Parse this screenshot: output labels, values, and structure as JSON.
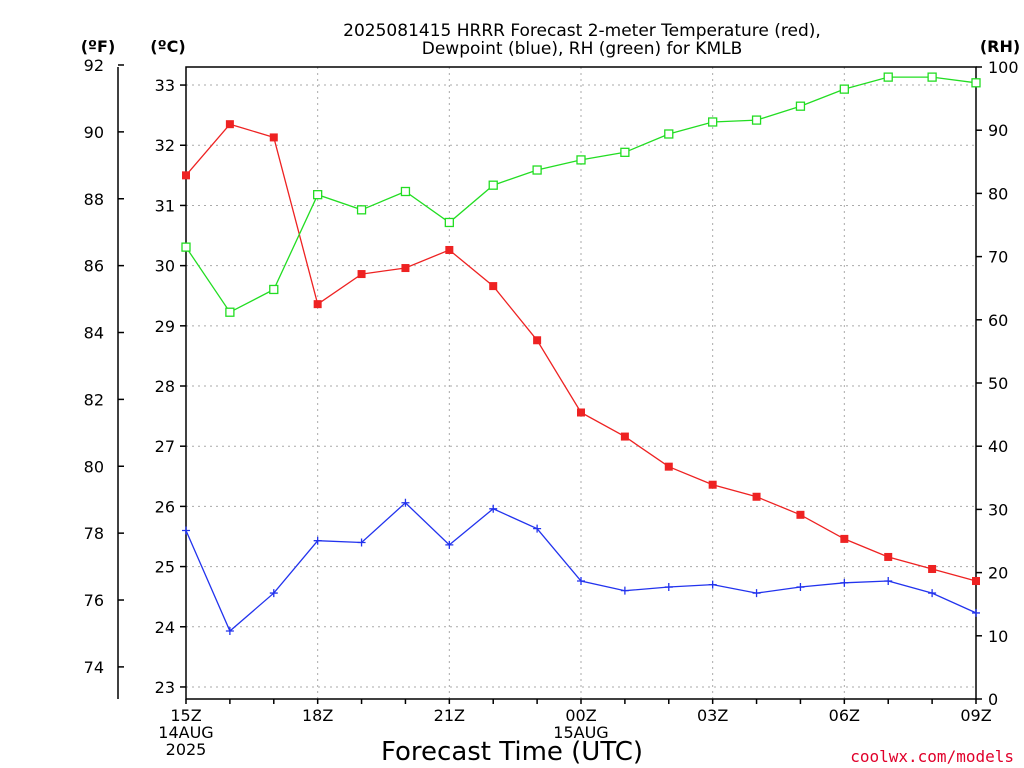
{
  "chart_data": {
    "type": "line",
    "title_line1": "2025081415 HRRR Forecast 2-meter Temperature (red),",
    "title_line2": "Dewpoint (blue), RH (green) for KMLB",
    "xlabel": "Forecast Time (UTC)",
    "credit": "coolwx.com/models",
    "units": {
      "f": "(ºF)",
      "c": "(ºC)",
      "rh": "(RH)"
    },
    "x_hours": [
      0,
      1,
      2,
      3,
      4,
      5,
      6,
      7,
      8,
      9,
      10,
      11,
      12,
      13,
      14,
      15,
      16,
      17,
      18
    ],
    "x_ticks": [
      {
        "hour": 0,
        "lines": [
          "15Z",
          "14AUG",
          "2025"
        ]
      },
      {
        "hour": 3,
        "lines": [
          "18Z"
        ]
      },
      {
        "hour": 6,
        "lines": [
          "21Z"
        ]
      },
      {
        "hour": 9,
        "lines": [
          "00Z",
          "15AUG"
        ]
      },
      {
        "hour": 12,
        "lines": [
          "03Z"
        ]
      },
      {
        "hour": 15,
        "lines": [
          "06Z"
        ]
      },
      {
        "hour": 18,
        "lines": [
          "09Z"
        ]
      }
    ],
    "y_celsius": {
      "range": [
        22.8,
        33.3
      ],
      "ticks": [
        "23",
        "24",
        "25",
        "26",
        "27",
        "28",
        "29",
        "30",
        "31",
        "32",
        "33"
      ]
    },
    "y_fahrenheit": {
      "ticks": [
        "74",
        "76",
        "78",
        "80",
        "82",
        "84",
        "86",
        "88",
        "90",
        "92"
      ]
    },
    "y_rh": {
      "range": [
        0,
        100
      ],
      "ticks": [
        "0",
        "10",
        "20",
        "30",
        "40",
        "50",
        "60",
        "70",
        "80",
        "90",
        "100"
      ]
    },
    "grid": true,
    "series": [
      {
        "key": "temperature",
        "color": "#ee2222",
        "marker": "filled-square",
        "axis": "celsius",
        "values": [
          31.5,
          32.35,
          32.13,
          29.36,
          29.86,
          29.96,
          30.26,
          29.66,
          28.76,
          27.56,
          27.16,
          26.66,
          26.36,
          26.16,
          25.86,
          25.46,
          25.16,
          24.96,
          24.76
        ]
      },
      {
        "key": "dewpoint",
        "color": "#2233ee",
        "marker": "plus",
        "axis": "celsius",
        "values": [
          25.6,
          23.93,
          24.56,
          25.43,
          25.4,
          26.06,
          25.36,
          25.96,
          25.63,
          24.76,
          24.6,
          24.66,
          24.7,
          24.56,
          24.66,
          24.73,
          24.76,
          24.56,
          24.23
        ]
      },
      {
        "key": "rh",
        "color": "#22dd22",
        "marker": "hollow-square",
        "axis": "rh",
        "values": [
          71.5,
          61.2,
          64.8,
          79.8,
          77.4,
          80.3,
          75.4,
          81.3,
          83.7,
          85.3,
          86.5,
          89.4,
          91.3,
          91.6,
          93.8,
          96.5,
          98.4,
          98.4,
          97.5
        ]
      }
    ]
  }
}
